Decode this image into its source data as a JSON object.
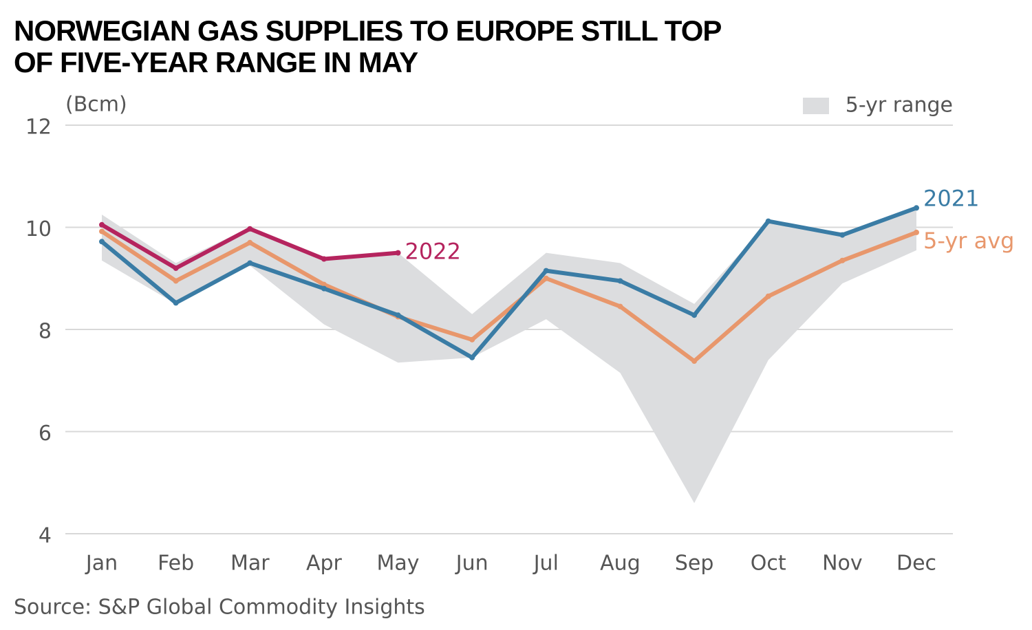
{
  "chart_data": {
    "type": "line",
    "title": "NORWEGIAN GAS SUPPLIES TO EUROPE STILL TOP OF FIVE-YEAR RANGE IN MAY",
    "y_label": "(Bcm)",
    "source": "Source: S&P Global Commodity Insights",
    "categories": [
      "Jan",
      "Feb",
      "Mar",
      "Apr",
      "May",
      "Jun",
      "Jul",
      "Aug",
      "Sep",
      "Oct",
      "Nov",
      "Dec"
    ],
    "ylim": [
      4,
      12
    ],
    "yticks": [
      4,
      6,
      8,
      10,
      12
    ],
    "grid": true,
    "legend": "top-right",
    "range": {
      "name": "5-yr range",
      "color": "#dcdddf",
      "high": [
        10.25,
        9.3,
        10.0,
        9.4,
        9.5,
        8.3,
        9.5,
        9.3,
        8.5,
        10.1,
        9.9,
        10.38
      ],
      "low": [
        9.35,
        8.5,
        9.25,
        8.1,
        7.35,
        7.45,
        8.2,
        7.15,
        4.6,
        7.4,
        8.9,
        9.55
      ]
    },
    "series": [
      {
        "name": "5-yr avg",
        "color": "#e8976c",
        "values": [
          9.92,
          8.95,
          9.7,
          8.88,
          8.25,
          7.8,
          9.0,
          8.45,
          7.38,
          8.65,
          9.35,
          9.9
        ]
      },
      {
        "name": "2021",
        "color": "#3a7ca5",
        "values": [
          9.72,
          8.52,
          9.3,
          8.8,
          8.28,
          7.45,
          9.15,
          8.95,
          8.28,
          10.12,
          9.85,
          10.38
        ]
      },
      {
        "name": "2022",
        "color": "#b5245e",
        "values": [
          10.05,
          9.2,
          9.97,
          9.38,
          9.5,
          null,
          null,
          null,
          null,
          null,
          null,
          null
        ]
      }
    ]
  }
}
